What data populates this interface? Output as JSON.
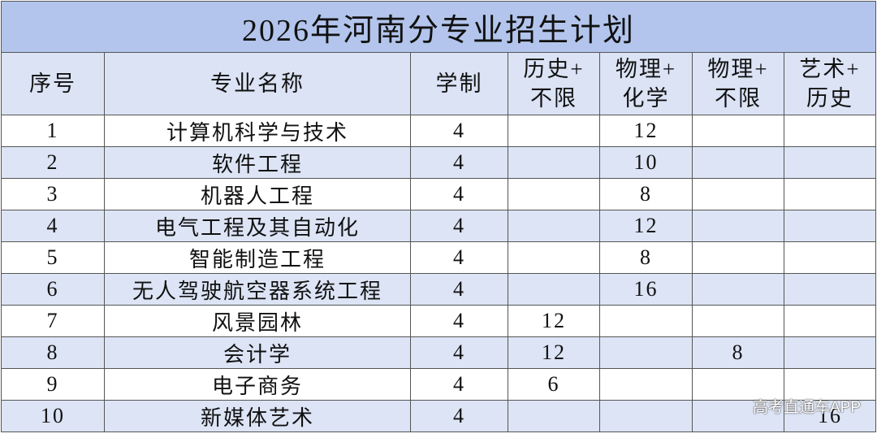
{
  "title": "2026年河南分专业招生计划",
  "table": {
    "header": [
      [
        "序号"
      ],
      [
        "专业名称"
      ],
      [
        "学制"
      ],
      [
        "历史+",
        "不限"
      ],
      [
        "物理+",
        "化学"
      ],
      [
        "物理+",
        "不限"
      ],
      [
        "艺术+",
        "历史"
      ]
    ],
    "rows": [
      [
        1,
        "计算机科学与技术",
        4,
        null,
        12,
        null,
        null
      ],
      [
        2,
        "软件工程",
        4,
        null,
        10,
        null,
        null
      ],
      [
        3,
        "机器人工程",
        4,
        null,
        8,
        null,
        null
      ],
      [
        4,
        "电气工程及其自动化",
        4,
        null,
        12,
        null,
        null
      ],
      [
        5,
        "智能制造工程",
        4,
        null,
        8,
        null,
        null
      ],
      [
        6,
        "无人驾驶航空器系统工程",
        4,
        null,
        16,
        null,
        null
      ],
      [
        7,
        "风景园林",
        4,
        12,
        null,
        null,
        null
      ],
      [
        8,
        "会计学",
        4,
        12,
        null,
        8,
        null
      ],
      [
        9,
        "电子商务",
        4,
        6,
        null,
        null,
        null
      ],
      [
        10,
        "新媒体艺术",
        4,
        null,
        null,
        null,
        16
      ]
    ]
  },
  "watermark": "高考直通车APP"
}
